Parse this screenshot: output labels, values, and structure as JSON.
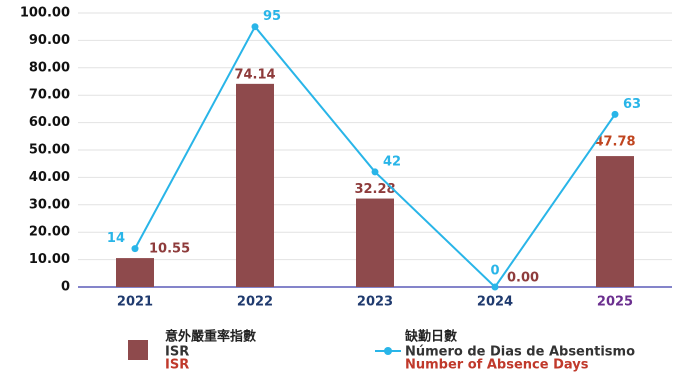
{
  "chart_data": {
    "type": "bar_line",
    "categories": [
      "2021",
      "2022",
      "2023",
      "2024",
      "2025"
    ],
    "category_colors": [
      "#1f3a6e",
      "#1f3a6e",
      "#1f3a6e",
      "#1f3a6e",
      "#6b2f8f"
    ],
    "series": [
      {
        "name": "意外嚴重率指數",
        "legend_lines": [
          "ISR",
          "ISR"
        ],
        "legend_line_colors": [
          "#333333",
          "#c0392b"
        ],
        "type": "bar",
        "color": "#8e4a4c",
        "values": [
          10.55,
          74.14,
          32.28,
          0,
          47.78
        ],
        "value_labels": [
          "10.55",
          "74.14",
          "32.28",
          "0.00",
          "47.78"
        ],
        "label_colors": [
          "#8e3b3b",
          "#8e3b3b",
          "#8e3b3b",
          "#8e3b3b",
          "#c0451f"
        ]
      },
      {
        "name": "缺勤日數",
        "legend_lines": [
          "Número de Dias de Absentismo",
          "Number of Absence Days"
        ],
        "legend_line_colors": [
          "#333333",
          "#c0392b"
        ],
        "type": "line",
        "color": "#29b5e8",
        "values": [
          14,
          95,
          42,
          0,
          63
        ]
      }
    ],
    "ylim": [
      0,
      100
    ],
    "yticks": [
      0,
      {
        "value": 10,
        "label": "10.00"
      },
      {
        "value": 20,
        "label": "20.00"
      },
      {
        "value": 30,
        "label": "30.00"
      },
      {
        "value": 40,
        "label": "40.00"
      },
      {
        "value": 50,
        "label": "50.00"
      },
      {
        "value": 60,
        "label": "60.00"
      },
      {
        "value": 70,
        "label": "70.00"
      },
      {
        "value": 80,
        "label": "80.00"
      },
      {
        "value": 90,
        "label": "90.00"
      },
      {
        "value": 100,
        "label": "100.00"
      }
    ],
    "grid": true
  }
}
